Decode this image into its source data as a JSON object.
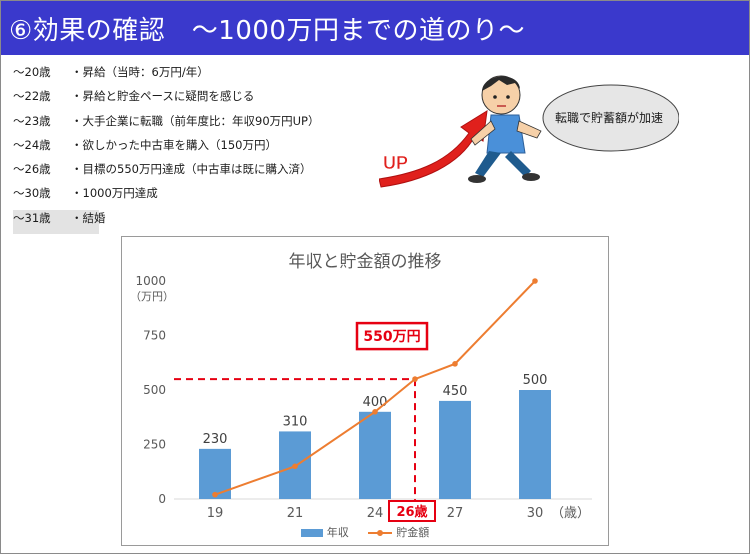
{
  "header": {
    "title": "⑥効果の確認　～1000万円までの道のり～"
  },
  "timeline": [
    {
      "age": "～20歳",
      "text": "・昇給（当時：6万円/年）"
    },
    {
      "age": "～22歳",
      "text": "・昇給と貯金ペースに疑問を感じる"
    },
    {
      "age": "～23歳",
      "text": "・大手企業に転職（前年度比：年収90万円UP）"
    },
    {
      "age": "～24歳",
      "text": "・欲しかった中古車を購入（150万円）"
    },
    {
      "age": "～26歳",
      "text": "・目標の550万円達成（中古車は既に購入済）"
    },
    {
      "age": "～30歳",
      "text": "・1000万円達成"
    },
    {
      "age": "～31歳",
      "text": "・結婚"
    }
  ],
  "illustration": {
    "up_label": "UP",
    "bubble_text": "転職で貯蓄額が加速",
    "icons": [
      "running-man-icon",
      "up-arrow-icon",
      "speech-bubble-icon"
    ]
  },
  "chart_data": {
    "type": "bar",
    "title": "年収と貯金額の推移",
    "y_unit": "（万円）",
    "x_unit": "（歳）",
    "ylim": [
      0,
      1000
    ],
    "yticks": [
      0,
      250,
      500,
      750,
      1000
    ],
    "categories": [
      "19",
      "21",
      "24",
      "27",
      "30"
    ],
    "series": [
      {
        "name": "年収",
        "type": "bar",
        "color": "#5b9bd5",
        "values": [
          230,
          310,
          400,
          450,
          500
        ]
      },
      {
        "name": "貯金額",
        "type": "line",
        "color": "#ed7d31",
        "x": [
          19,
          21,
          24,
          25.5,
          27,
          30
        ],
        "values": [
          20,
          150,
          400,
          550,
          620,
          1000
        ]
      }
    ],
    "annotations": {
      "target_value": 550,
      "target_label": "550万円",
      "target_age": 26,
      "target_age_label": "26歳",
      "color": "#e60012"
    },
    "grid": false,
    "legend": "bottom"
  }
}
